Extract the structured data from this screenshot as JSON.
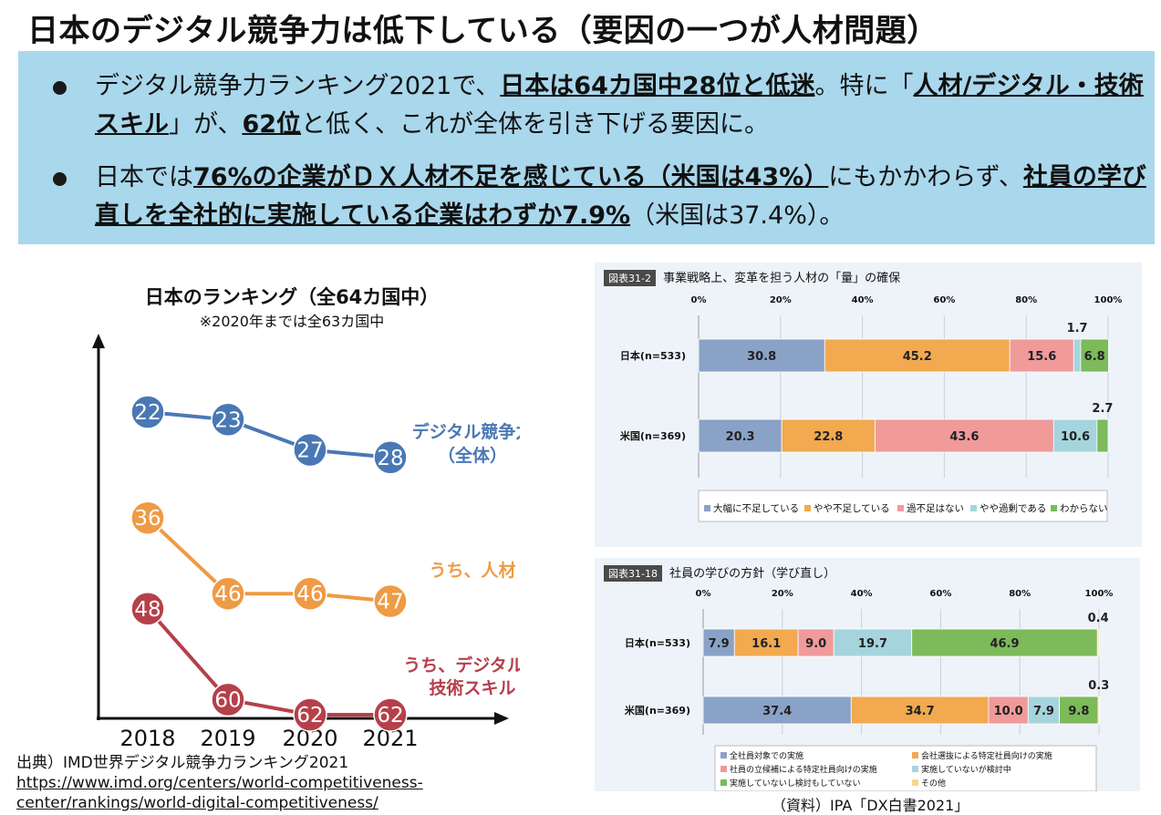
{
  "header": {
    "title": "日本のデジタル競争力は低下している（要因の一つが人材問題）"
  },
  "bullets": [
    {
      "parts": [
        {
          "text": "デジタル競争力ランキング2021で、",
          "em": false
        },
        {
          "text": "日本は64カ国中28位と低迷",
          "em": true
        },
        {
          "text": "。特に「",
          "em": false
        },
        {
          "text": "人材/デジタル・技術スキル",
          "em": true
        },
        {
          "text": "」が、",
          "em": false
        },
        {
          "text": "62位",
          "em": true
        },
        {
          "text": "と低く、これが全体を引き下げる要因に。",
          "em": false
        }
      ]
    },
    {
      "parts": [
        {
          "text": "日本では",
          "em": false
        },
        {
          "text": "76%の企業がＤＸ人材不足を感じている（米国は43%）",
          "em": true
        },
        {
          "text": "にもかかわらず、",
          "em": false
        },
        {
          "text": "社員の学び直しを全社的に実施している企業はわずか7.9%",
          "em": true
        },
        {
          "text": "（米国は37.4%）。",
          "em": false
        }
      ]
    }
  ],
  "colors": {
    "banner": "#a9d7ec",
    "overall": "#4a78b5",
    "talent": "#ef9a45",
    "skills": "#b5404a",
    "seg_blue": "#8aa2c8",
    "seg_orange": "#f2a94f",
    "seg_pink": "#f09a9a",
    "seg_teal": "#a6d4dd",
    "seg_green": "#7cba5a",
    "seg_yellow": "#f4d88a"
  },
  "chart_data": [
    {
      "type": "line",
      "title": "日本のランキング（全64カ国中）",
      "subtitle": "※2020年までは全63カ国中",
      "x": [
        "2018",
        "2019",
        "2020",
        "2021"
      ],
      "series": [
        {
          "name": "デジタル競争力（全体）",
          "values": [
            22,
            23,
            27,
            28
          ],
          "color": "#4a78b5"
        },
        {
          "name": "うち、人材",
          "values": [
            36,
            46,
            46,
            47
          ],
          "color": "#ef9a45"
        },
        {
          "name": "うち、デジタル・技術スキル",
          "values": [
            48,
            60,
            62,
            62
          ],
          "color": "#b5404a"
        }
      ],
      "y_inverted": true
    },
    {
      "type": "bar",
      "stacked": true,
      "orientation": "horizontal",
      "tag": "図表31-2",
      "title": "事業戦略上、変革を担う人材の「量」の確保",
      "xticks": [
        "0%",
        "20%",
        "40%",
        "60%",
        "80%",
        "100%"
      ],
      "categories": [
        "日本(n=533)",
        "米国(n=369)"
      ],
      "series": [
        {
          "name": "大幅に不足している",
          "values": [
            30.8,
            20.3
          ],
          "color": "#8aa2c8"
        },
        {
          "name": "やや不足している",
          "values": [
            45.2,
            22.8
          ],
          "color": "#f2a94f"
        },
        {
          "name": "過不足はない",
          "values": [
            15.6,
            43.6
          ],
          "color": "#f09a9a"
        },
        {
          "name": "やや過剰である",
          "values": [
            1.7,
            10.6
          ],
          "color": "#a6d4dd"
        },
        {
          "name": "わからない",
          "values": [
            6.8,
            2.7
          ],
          "color": "#7cba5a"
        }
      ]
    },
    {
      "type": "bar",
      "stacked": true,
      "orientation": "horizontal",
      "tag": "図表31-18",
      "title": "社員の学びの方針（学び直し）",
      "xticks": [
        "0%",
        "20%",
        "40%",
        "60%",
        "80%",
        "100%"
      ],
      "categories": [
        "日本(n=533)",
        "米国(n=369)"
      ],
      "series": [
        {
          "name": "全社員対象での実施",
          "values": [
            7.9,
            37.4
          ],
          "color": "#8aa2c8"
        },
        {
          "name": "会社選抜による特定社員向けの実施",
          "values": [
            16.1,
            34.7
          ],
          "color": "#f2a94f"
        },
        {
          "name": "社員の立候補による特定社員向けの実施",
          "values": [
            9.0,
            10.0
          ],
          "color": "#f09a9a"
        },
        {
          "name": "実施していないが検討中",
          "values": [
            19.7,
            7.9
          ],
          "color": "#a6d4dd"
        },
        {
          "name": "実施していないし検討もしていない",
          "values": [
            46.9,
            9.8
          ],
          "color": "#7cba5a"
        },
        {
          "name": "その他",
          "values": [
            0.4,
            0.3
          ],
          "color": "#f4d88a"
        }
      ]
    }
  ],
  "source": {
    "label": "出典）IMD世界デジタル競争力ランキング2021",
    "url_line1": "https://www.imd.org/centers/world-competitiveness-",
    "url_line2": "center/rankings/world-digital-competitiveness/"
  },
  "credit": "（資料）IPA「DX白書2021」"
}
